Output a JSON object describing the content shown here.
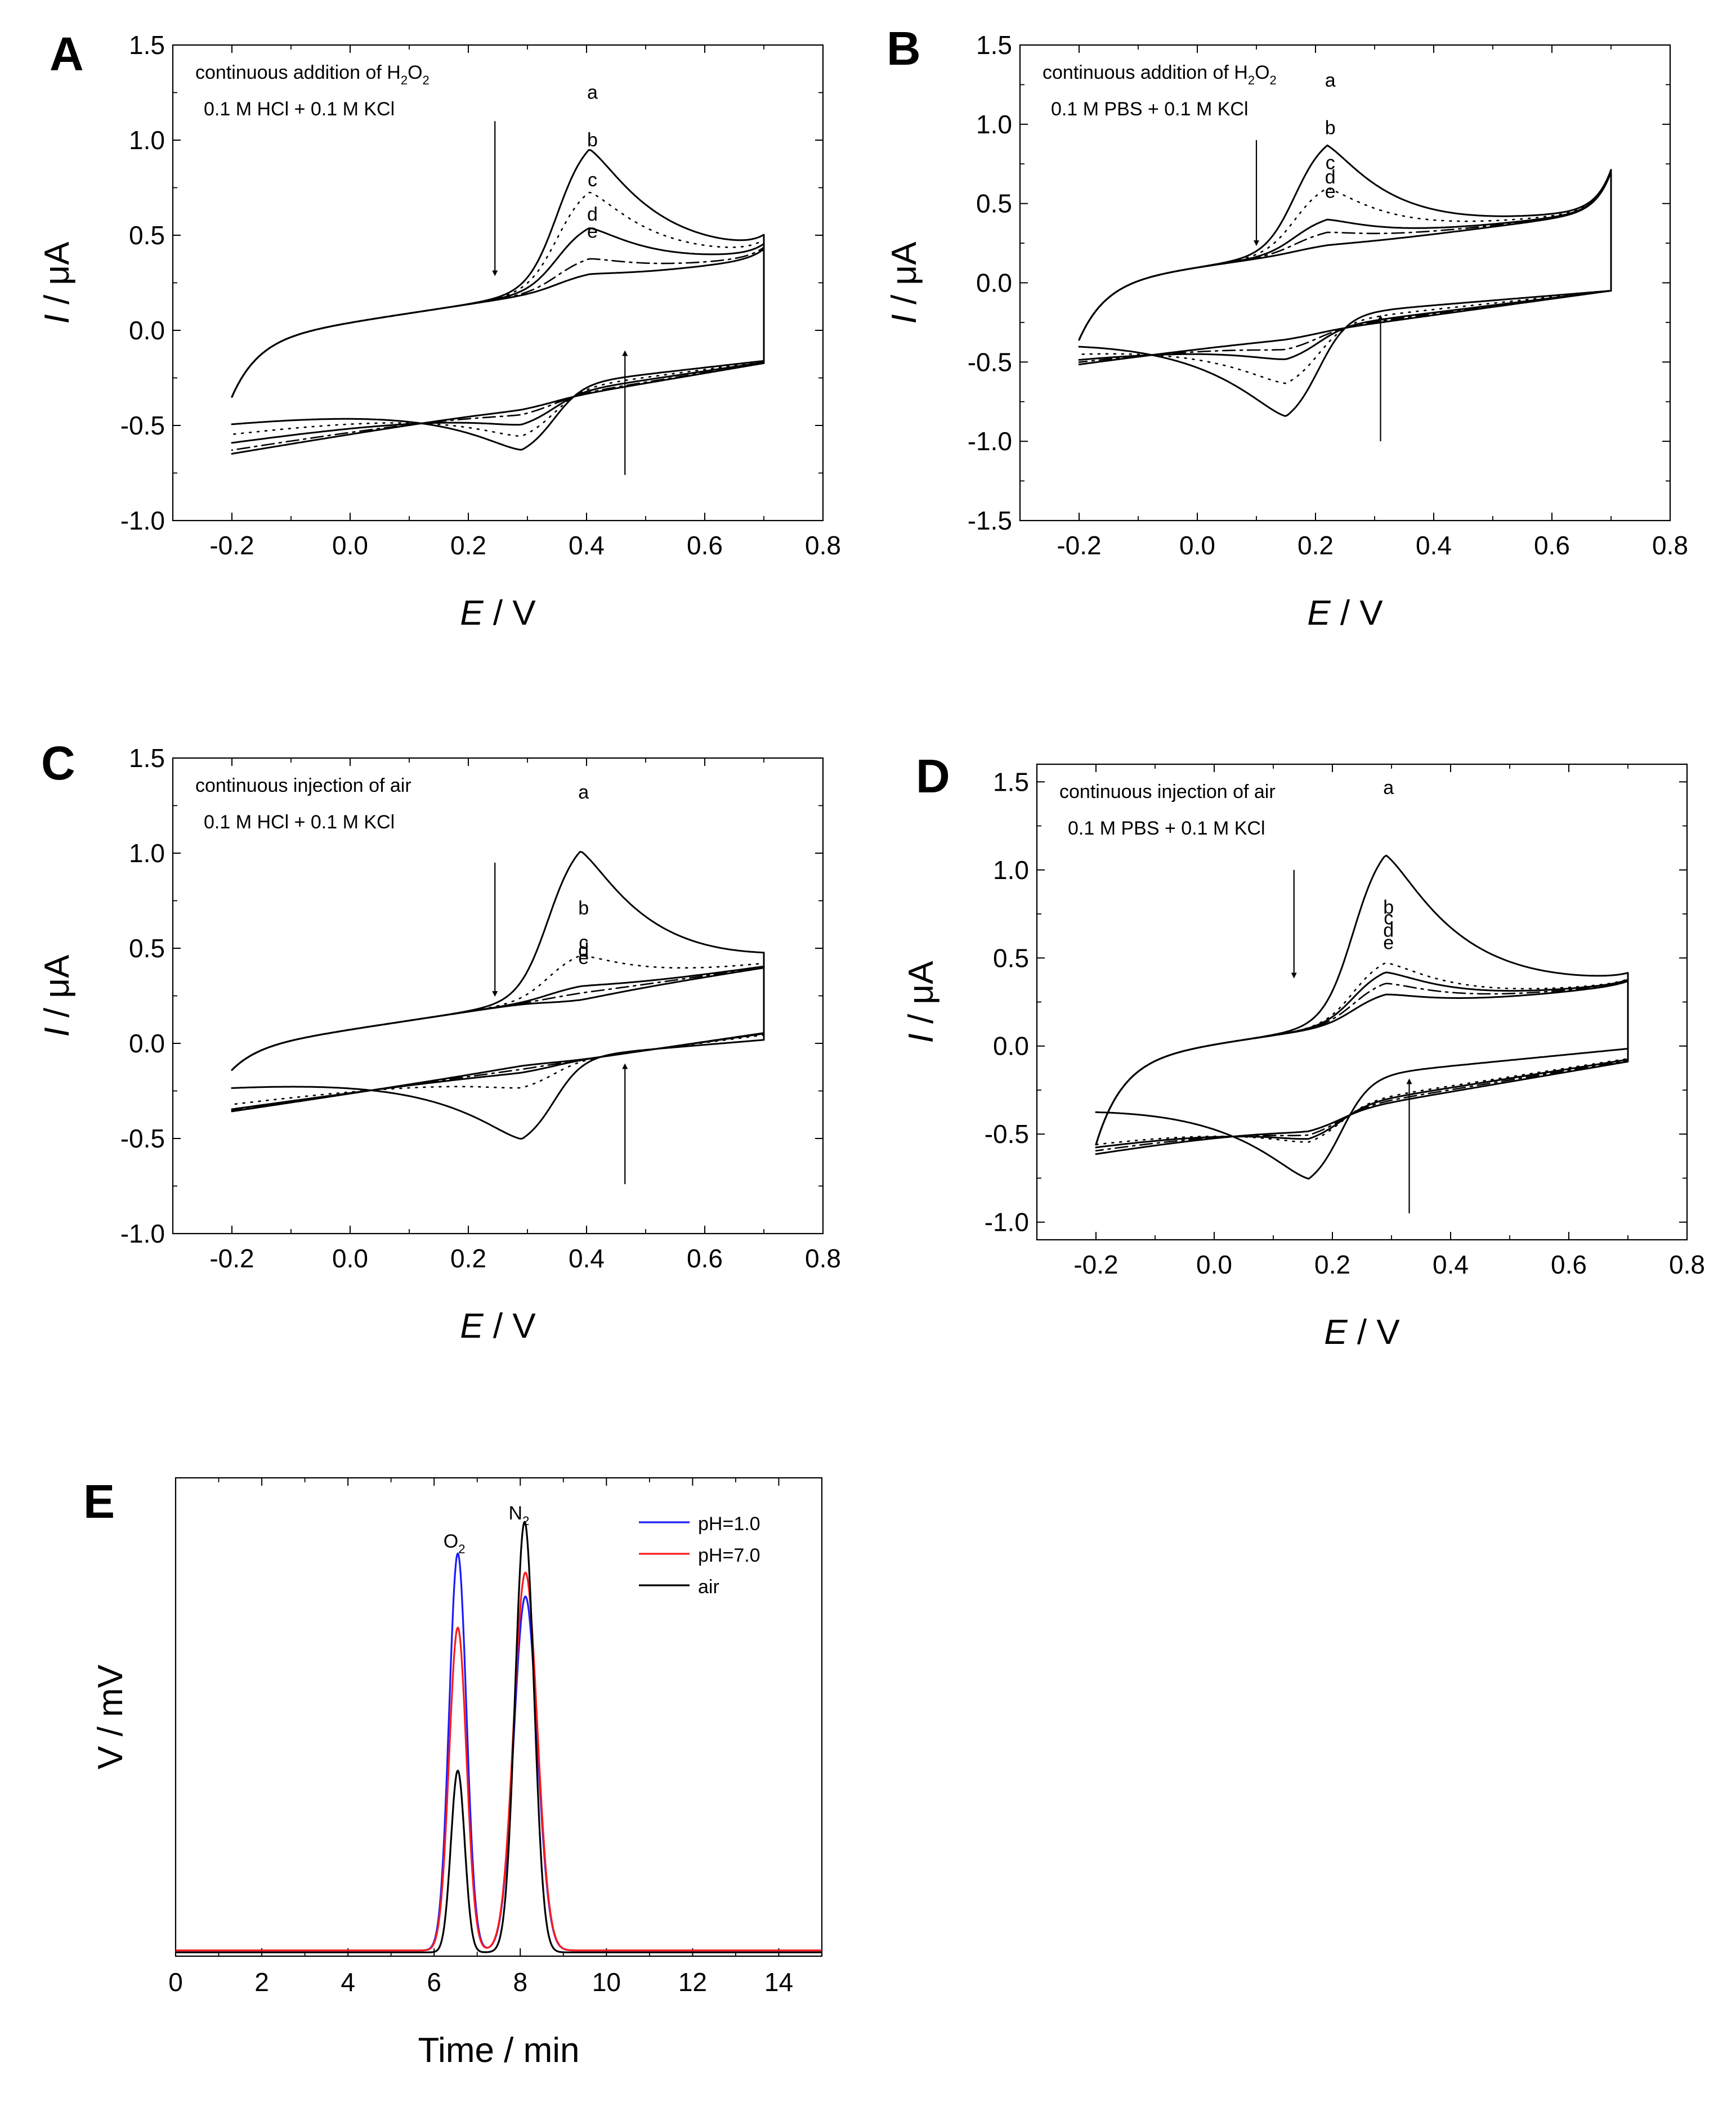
{
  "chart_data": [
    {
      "panel": "A",
      "type": "line",
      "xlabel_italic": "E",
      "xlabel_unit": " / V",
      "ylabel_italic": "I",
      "ylabel_unit": " / μA",
      "xlim": [
        -0.3,
        0.8
      ],
      "ylim": [
        -1.0,
        1.5
      ],
      "xticks": [
        -0.2,
        0.0,
        0.2,
        0.4,
        0.6,
        0.8
      ],
      "xtick_labels": [
        "-0.2",
        "0.0",
        "0.2",
        "0.4",
        "0.6",
        "0.8"
      ],
      "yticks": [
        -1.0,
        -0.5,
        0.0,
        0.5,
        1.0,
        1.5
      ],
      "ytick_labels": [
        "-1.0",
        "-0.5",
        "0.0",
        "0.5",
        "1.0",
        "1.5"
      ],
      "annotation_line1_prefix": "continuous addition of H",
      "annotation_sub1": "2",
      "annotation_mid": "O",
      "annotation_sub2": "2",
      "annotation_line2": "0.1 M HCl + 0.1 M KCl",
      "cv": {
        "e1": -0.2,
        "e2": 0.7,
        "epa": 0.405,
        "epc": 0.29,
        "iz": -0.05,
        "s": 0.42,
        "q0": -0.47,
        "q1": -0.16,
        "n0": 0.28,
        "n1": 0.02,
        "tail": -0.3,
        "wa": 0.07,
        "wc": 0.055,
        "decay": 0.13,
        "cratio": 0.45,
        "upturn": 0.05
      },
      "series": [
        {
          "name": "a",
          "ipa": 1.17,
          "style": "solid"
        },
        {
          "name": "b",
          "ipa": 0.92,
          "style": "dotted"
        },
        {
          "name": "c",
          "ipa": 0.71,
          "style": "solid"
        },
        {
          "name": "d",
          "ipa": 0.53,
          "style": "dashdot"
        },
        {
          "name": "e",
          "ipa": 0.44,
          "style": "solid"
        }
      ],
      "arrows": [
        {
          "x": 0.245,
          "from": 1.1,
          "to": 0.3
        },
        {
          "x": 0.465,
          "from": -0.76,
          "to": -0.12
        }
      ]
    },
    {
      "panel": "B",
      "type": "line",
      "xlabel_italic": "E",
      "xlabel_unit": " / V",
      "ylabel_italic": "I",
      "ylabel_unit": " / μA",
      "xlim": [
        -0.3,
        0.8
      ],
      "ylim": [
        -1.5,
        1.5
      ],
      "xticks": [
        -0.2,
        0.0,
        0.2,
        0.4,
        0.6,
        0.8
      ],
      "xtick_labels": [
        "-0.2",
        "0.0",
        "0.2",
        "0.4",
        "0.6",
        "0.8"
      ],
      "yticks": [
        -1.5,
        -1.0,
        -0.5,
        0.0,
        0.5,
        1.0,
        1.5
      ],
      "ytick_labels": [
        "-1.5",
        "-1.0",
        "-0.5",
        "0.0",
        "0.5",
        "1.0",
        "1.5"
      ],
      "annotation_line1_prefix": "continuous addition of H",
      "annotation_sub1": "2",
      "annotation_mid": "O",
      "annotation_sub2": "2",
      "annotation_line2": "0.1 M PBS + 0.1 M KCl",
      "cv": {
        "e1": -0.2,
        "e2": 0.7,
        "epa": 0.22,
        "epc": 0.15,
        "iz": 0.0,
        "s": 0.45,
        "q0": -0.32,
        "q1": -0.05,
        "n0": 0.32,
        "n1": 0.0,
        "tail": -0.36,
        "wa": 0.06,
        "wc": 0.06,
        "decay": 0.12,
        "cratio": 0.95,
        "upturn": 0.25
      },
      "series": [
        {
          "name": "a",
          "ipa": 1.18,
          "style": "solid"
        },
        {
          "name": "b",
          "ipa": 0.88,
          "style": "dotted"
        },
        {
          "name": "c",
          "ipa": 0.66,
          "style": "solid"
        },
        {
          "name": "d",
          "ipa": 0.57,
          "style": "dashdot"
        },
        {
          "name": "e",
          "ipa": 0.48,
          "style": "solid"
        }
      ],
      "arrows": [
        {
          "x": 0.1,
          "from": 0.9,
          "to": 0.25
        },
        {
          "x": 0.31,
          "from": -1.0,
          "to": -0.22
        }
      ]
    },
    {
      "panel": "C",
      "type": "line",
      "xlabel_italic": "E",
      "xlabel_unit": " / V",
      "ylabel_italic": "I",
      "ylabel_unit": " / μA",
      "xlim": [
        -0.3,
        0.8
      ],
      "ylim": [
        -1.0,
        1.5
      ],
      "xticks": [
        -0.2,
        0.0,
        0.2,
        0.4,
        0.6,
        0.8
      ],
      "xtick_labels": [
        "-0.2",
        "0.0",
        "0.2",
        "0.4",
        "0.6",
        "0.8"
      ],
      "yticks": [
        -1.0,
        -0.5,
        0.0,
        0.5,
        1.0,
        1.5
      ],
      "ytick_labels": [
        "-1.0",
        "-0.5",
        "0.0",
        "0.5",
        "1.0",
        "1.5"
      ],
      "annotation_line1": "continuous injection of air",
      "annotation_line2": "0.1 M HCl + 0.1 M KCl",
      "cv": {
        "e1": -0.2,
        "e2": 0.7,
        "epa": 0.39,
        "epc": 0.29,
        "iz": -0.02,
        "s": 0.42,
        "q0": -0.22,
        "q1": 0.02,
        "n0": 0.2,
        "n1": -0.05,
        "tail": -0.12,
        "wa": 0.065,
        "wc": 0.055,
        "decay": 0.13,
        "cratio": 0.55,
        "upturn": 0.0
      },
      "series": [
        {
          "name": "a",
          "ipa": 1.24,
          "style": "solid"
        },
        {
          "name": "b",
          "ipa": 0.63,
          "style": "dotted"
        },
        {
          "name": "c",
          "ipa": 0.45,
          "style": "solid"
        },
        {
          "name": "d",
          "ipa": 0.41,
          "style": "dashdot"
        },
        {
          "name": "e",
          "ipa": 0.37,
          "style": "solid"
        }
      ],
      "arrows": [
        {
          "x": 0.245,
          "from": 0.95,
          "to": 0.26
        },
        {
          "x": 0.465,
          "from": -0.74,
          "to": -0.12
        }
      ]
    },
    {
      "panel": "D",
      "type": "line",
      "xlabel_italic": "E",
      "xlabel_unit": " / V",
      "ylabel_italic": "I",
      "ylabel_unit": " / μA",
      "xlim": [
        -0.3,
        0.8
      ],
      "ylim": [
        -1.1,
        1.6
      ],
      "xticks": [
        -0.2,
        0.0,
        0.2,
        0.4,
        0.6,
        0.8
      ],
      "xtick_labels": [
        "-0.2",
        "0.0",
        "0.2",
        "0.4",
        "0.6",
        "0.8"
      ],
      "yticks": [
        -1.0,
        -0.5,
        0.0,
        0.5,
        1.0,
        1.5
      ],
      "ytick_labels": [
        "-1.0",
        "-0.5",
        "0.0",
        "0.5",
        "1.0",
        "1.5"
      ],
      "annotation_line1": "continuous injection of air",
      "annotation_line2": "0.1 M PBS + 0.1 M KCl",
      "cv": {
        "e1": -0.2,
        "e2": 0.7,
        "epa": 0.29,
        "epc": 0.16,
        "iz": -0.08,
        "s": 0.42,
        "q0": -0.37,
        "q1": -0.03,
        "n0": 0.4,
        "n1": 0.1,
        "tail": -0.48,
        "wa": 0.07,
        "wc": 0.06,
        "decay": 0.14,
        "cratio": 0.6,
        "upturn": 0.02
      },
      "series": [
        {
          "name": "a",
          "ipa": 1.38,
          "style": "solid"
        },
        {
          "name": "b",
          "ipa": 0.7,
          "style": "dotted"
        },
        {
          "name": "c",
          "ipa": 0.64,
          "style": "solid"
        },
        {
          "name": "d",
          "ipa": 0.57,
          "style": "dashdot"
        },
        {
          "name": "e",
          "ipa": 0.5,
          "style": "solid"
        }
      ],
      "arrows": [
        {
          "x": 0.135,
          "from": 1.0,
          "to": 0.4
        },
        {
          "x": 0.33,
          "from": -0.95,
          "to": -0.2
        }
      ]
    },
    {
      "panel": "E",
      "type": "line",
      "xlabel": "Time / min",
      "ylabel": "V / mV",
      "xlim": [
        0,
        15
      ],
      "ylim": [
        0,
        1
      ],
      "xticks": [
        0,
        2,
        4,
        6,
        8,
        10,
        12,
        14
      ],
      "xtick_labels": [
        "0",
        "2",
        "4",
        "6",
        "8",
        "10",
        "12",
        "14"
      ],
      "peak_labels": [
        {
          "base": "O",
          "sub": "2",
          "x": 6.6
        },
        {
          "base": "N",
          "sub": "2",
          "x": 8.1
        }
      ],
      "series": [
        {
          "name": "pH=1.0",
          "color": "#1a1aff",
          "baseline": 0.012,
          "peaks": [
            {
              "x": 6.55,
              "h": 0.83,
              "w": 0.2
            },
            {
              "x": 8.12,
              "h": 0.74,
              "w": 0.27
            }
          ]
        },
        {
          "name": "pH=7.0",
          "color": "#ff1a1a",
          "baseline": 0.012,
          "peaks": [
            {
              "x": 6.55,
              "h": 0.675,
              "w": 0.2
            },
            {
              "x": 8.12,
              "h": 0.79,
              "w": 0.27
            }
          ]
        },
        {
          "name": "air",
          "color": "#000000",
          "baseline": 0.008,
          "peaks": [
            {
              "x": 6.55,
              "h": 0.38,
              "w": 0.16
            },
            {
              "x": 8.1,
              "h": 0.9,
              "w": 0.22
            }
          ]
        }
      ]
    }
  ]
}
